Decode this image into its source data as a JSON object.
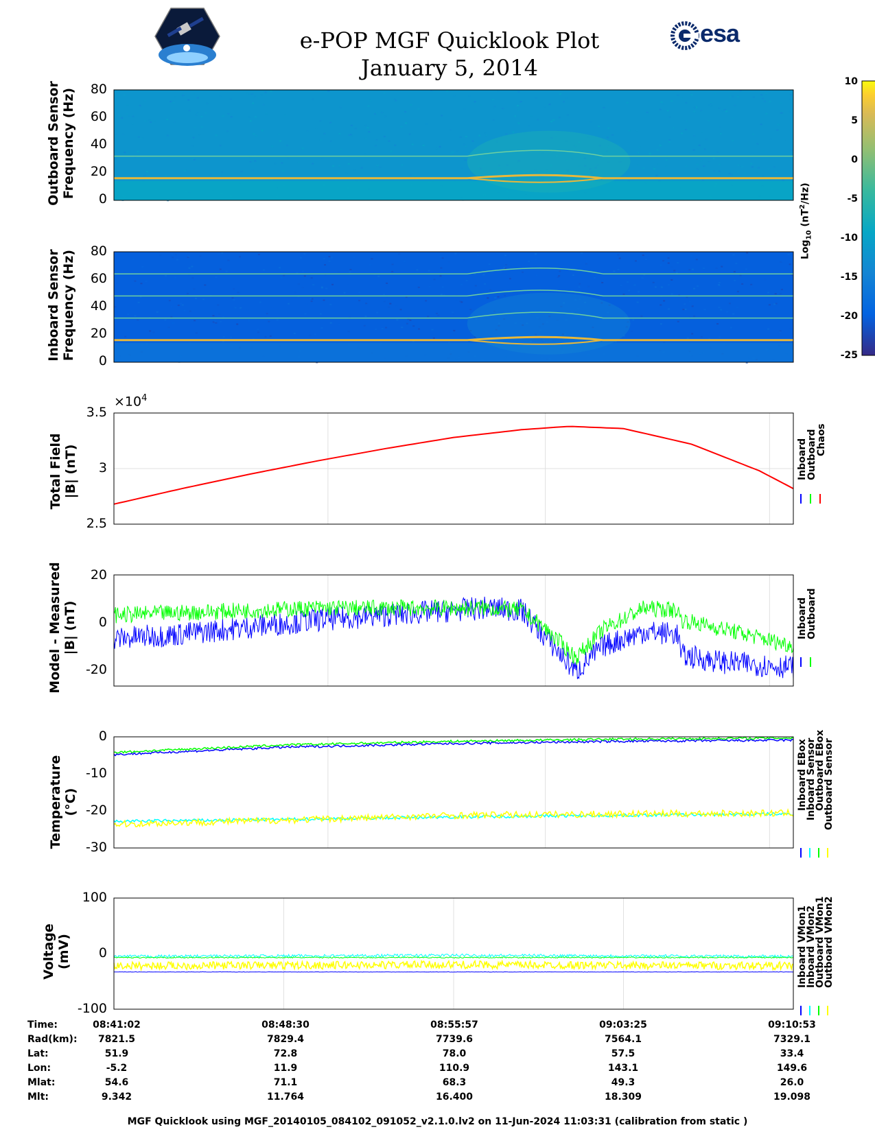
{
  "header": {
    "title": "e-POP MGF Quicklook Plot",
    "date": "January 5, 2014",
    "esa_logo": "esa",
    "mission_badge_icon": "cassiope-satellite-icon"
  },
  "colorbar": {
    "label_prefix": "Log",
    "label_sub": "10",
    "label_unit": "(nT",
    "label_sup": "2",
    "label_end": "/Hz)",
    "ticks": [
      "10",
      "5",
      "0",
      "-5",
      "-10",
      "-15",
      "-20",
      "-25"
    ],
    "range": [
      -25,
      10
    ],
    "colormap": "parula"
  },
  "chart_data": [
    {
      "type": "heatmap",
      "ylabel_line1": "Outboard Sensor",
      "ylabel_line2": "Frequency (Hz)",
      "ylim": [
        0,
        80
      ],
      "yticks": [
        "80",
        "60",
        "40",
        "20",
        "0"
      ],
      "background_level": -12,
      "lines_hz": [
        16,
        32
      ]
    },
    {
      "type": "heatmap",
      "ylabel_line1": "Inboard Sensor",
      "ylabel_line2": "Frequency (Hz)",
      "ylim": [
        0,
        80
      ],
      "yticks": [
        "80",
        "60",
        "40",
        "20",
        "0"
      ],
      "background_level": -20,
      "lines_hz": [
        16,
        32,
        48,
        64
      ]
    },
    {
      "type": "line",
      "ylabel_line1": "Total Field",
      "ylabel_line2": "|B| (nT)",
      "exponent": "×10",
      "exponent_power": "4",
      "ylim": [
        2.5,
        3.5
      ],
      "yticks": [
        "3.5",
        "3",
        "2.5"
      ],
      "legend": [
        "Inboard",
        "Outboard",
        "Chaos"
      ],
      "legend_colors": [
        "#0000ff",
        "#00ff00",
        "#ff0000"
      ],
      "x": [
        0,
        0.1,
        0.2,
        0.3,
        0.4,
        0.5,
        0.6,
        0.67,
        0.75,
        0.85,
        0.95,
        1.0
      ],
      "series": [
        {
          "name": "Chaos",
          "values": [
            2.68,
            2.82,
            2.95,
            3.07,
            3.18,
            3.28,
            3.35,
            3.38,
            3.36,
            3.22,
            2.98,
            2.82
          ]
        }
      ]
    },
    {
      "type": "line",
      "ylabel_line1": "Model - Measured",
      "ylabel_line2": "|B| (nT)",
      "ylim": [
        -27,
        20
      ],
      "yticks": [
        "20",
        "0",
        "-20"
      ],
      "legend": [
        "Inboard",
        "Outboard"
      ],
      "legend_colors": [
        "#0000ff",
        "#00ff00"
      ],
      "x": [
        0,
        0.1,
        0.2,
        0.3,
        0.4,
        0.5,
        0.55,
        0.6,
        0.64,
        0.68,
        0.72,
        0.78,
        0.83,
        0.835,
        0.9,
        1.0
      ],
      "series": [
        {
          "name": "Inboard",
          "values": [
            -7,
            -5,
            -2,
            1,
            3,
            5,
            6,
            5,
            -8,
            -21,
            -10,
            -4,
            -5,
            -14,
            -17,
            -19
          ]
        },
        {
          "name": "Outboard",
          "values": [
            3,
            4,
            5,
            6,
            6,
            6,
            6,
            5,
            -4,
            -15,
            -3,
            6,
            5,
            1,
            -3,
            -10
          ]
        }
      ]
    },
    {
      "type": "line",
      "ylabel_line1": "Temperature",
      "ylabel_line2": "(°C)",
      "ylim": [
        -30,
        0
      ],
      "yticks": [
        "0",
        "-10",
        "-20",
        "-30"
      ],
      "legend": [
        "Inboard EBox",
        "Inboard Sensor",
        "Outboard EBox",
        "Outboard Sensor"
      ],
      "legend_colors": [
        "#0000ff",
        "#00ffff",
        "#00ff00",
        "#ffff00"
      ],
      "x": [
        0,
        0.25,
        0.5,
        0.75,
        1.0
      ],
      "series": [
        {
          "name": "Inboard EBox",
          "values": [
            -4.8,
            -2.8,
            -1.8,
            -1.2,
            -0.9
          ]
        },
        {
          "name": "Inboard Sensor",
          "values": [
            -22.8,
            -22.3,
            -21.6,
            -21.2,
            -20.8
          ]
        },
        {
          "name": "Outboard EBox",
          "values": [
            -4.2,
            -2.2,
            -1.2,
            -0.6,
            -0.3
          ]
        },
        {
          "name": "Outboard Sensor",
          "values": [
            -23.6,
            -22.5,
            -21.2,
            -20.8,
            -20.6
          ]
        }
      ]
    },
    {
      "type": "line",
      "ylabel_line1": "Voltage",
      "ylabel_line2": "(mV)",
      "ylim": [
        -100,
        100
      ],
      "yticks": [
        "100",
        "0",
        "-100"
      ],
      "legend": [
        "Inboard VMon1",
        "Inboard VMon2",
        "Outboard VMon1",
        "Outboard VMon2"
      ],
      "legend_colors": [
        "#0000ff",
        "#00ffff",
        "#00ff00",
        "#ffff00"
      ],
      "x": [
        0,
        0.5,
        1.0
      ],
      "series": [
        {
          "name": "Inboard VMon1",
          "values": [
            -33,
            -33,
            -33
          ]
        },
        {
          "name": "Inboard VMon2",
          "values": [
            -5,
            -3,
            -5
          ]
        },
        {
          "name": "Outboard VMon1",
          "values": [
            -7,
            -7,
            -7
          ]
        },
        {
          "name": "Outboard VMon2",
          "values": [
            -22,
            -20,
            -22
          ]
        }
      ]
    }
  ],
  "table": {
    "row_labels": [
      "Time:",
      "Rad(km):",
      "Lat:",
      "Lon:",
      "Mlat:",
      "Mlt:"
    ],
    "columns": [
      [
        "08:41:02",
        "7821.5",
        "51.9",
        "-5.2",
        "54.6",
        "9.342"
      ],
      [
        "08:48:30",
        "7829.4",
        "72.8",
        "11.9",
        "71.1",
        "11.764"
      ],
      [
        "08:55:57",
        "7739.6",
        "78.0",
        "110.9",
        "68.3",
        "16.400"
      ],
      [
        "09:03:25",
        "7564.1",
        "57.5",
        "143.1",
        "49.3",
        "18.309"
      ],
      [
        "09:10:53",
        "7329.1",
        "33.4",
        "149.6",
        "26.0",
        "19.098"
      ]
    ]
  },
  "footer": "MGF Quicklook using MGF_20140105_084102_091052_v2.1.0.lv2 on 11-Jun-2024 11:03:31 (calibration from static )"
}
